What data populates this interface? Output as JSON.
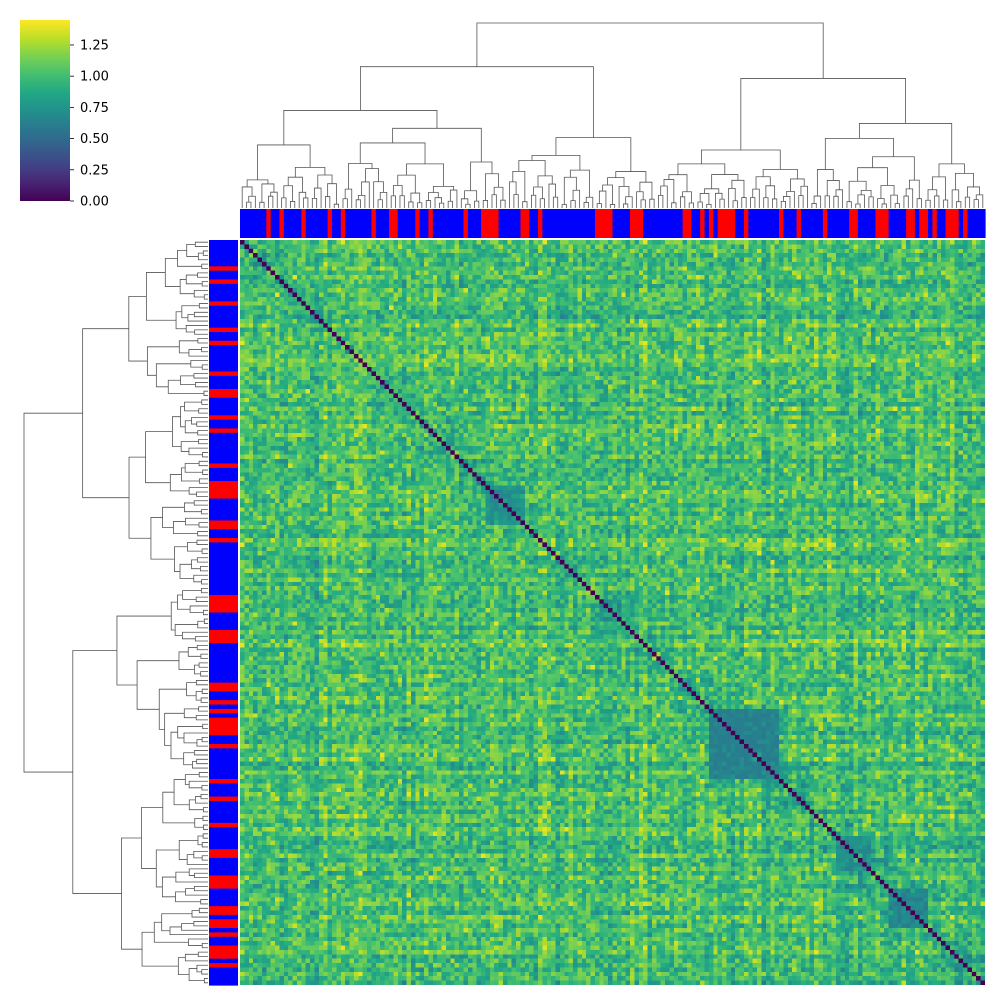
{
  "chart_data": {
    "type": "heatmap",
    "subtype": "clustermap",
    "title": "",
    "xlabel": "",
    "ylabel": "",
    "n": 170,
    "seed": 20240611,
    "colormap": "viridis",
    "diagonal_value": 0.0,
    "off_diagonal_range": [
      0.6,
      1.4
    ],
    "colorbar": {
      "range": [
        0.0,
        1.45
      ],
      "ticks": [
        0.0,
        0.25,
        0.5,
        0.75,
        1.0,
        1.25
      ],
      "tick_labels": [
        "0.00",
        "0.25",
        "0.50",
        "0.75",
        "1.00",
        "1.25"
      ]
    },
    "cluster_order_diagonal_dips": [
      {
        "start": 56,
        "end": 64,
        "value": 0.72
      },
      {
        "start": 107,
        "end": 122,
        "value": 0.62
      },
      {
        "start": 136,
        "end": 143,
        "value": 0.72
      },
      {
        "start": 148,
        "end": 156,
        "value": 0.65
      }
    ],
    "row_col_groups": {
      "labels": [
        "red",
        "blue"
      ],
      "colors": {
        "red": "#ff0000",
        "blue": "#0000ff"
      },
      "red_indices": [
        6,
        9,
        14,
        20,
        23,
        30,
        34,
        35,
        40,
        43,
        51,
        55,
        56,
        57,
        58,
        64,
        65,
        68,
        81,
        82,
        83,
        84,
        89,
        90,
        91,
        101,
        102,
        105,
        107,
        109,
        110,
        111,
        112,
        115,
        123,
        127,
        133,
        139,
        140,
        145,
        146,
        147,
        152,
        153,
        155,
        156,
        158,
        161,
        162,
        163,
        165
      ]
    }
  }
}
